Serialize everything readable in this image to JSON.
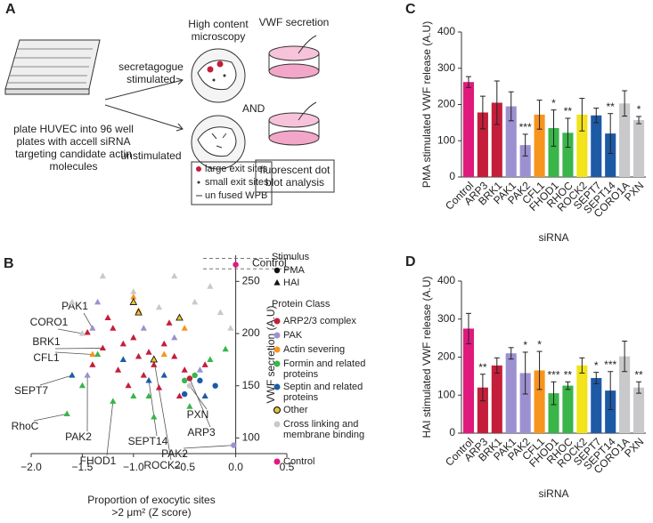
{
  "panel_labels": [
    "A",
    "B",
    "C",
    "D"
  ],
  "panel_a": {
    "plate_text": "plate HUVEC into 96 well plates with accell siRNA targeting candidate actin molecules",
    "stimulated": "secretagogue stimulated",
    "unstimulated": "unstimulated",
    "microscopy": "High content microscopy",
    "secretion": "VWF secretion",
    "and": "AND",
    "dot_blot": "fluorescent dot blot analysis",
    "legend": [
      "large exit sites",
      "small exit sites",
      "un fused WPB"
    ]
  },
  "chart_data": [
    {
      "type": "scatter",
      "x_label": [
        "Proportion of exocytic sites",
        ">2 μm² (Z score)"
      ],
      "y_label": "VWF secretion (A.U)",
      "xlim": [
        -2,
        0.5
      ],
      "xticks": [
        {
          "value": -2,
          "label": "−2.0"
        },
        {
          "value": -1.5,
          "label": "−1.5"
        },
        {
          "value": -1,
          "label": "−1.0"
        },
        {
          "value": -0.5,
          "label": "−0.5"
        },
        {
          "value": 0,
          "label": "0.0"
        },
        0.5
      ],
      "ylim": [
        85,
        275
      ],
      "yticks": [
        100,
        150,
        200,
        250
      ],
      "hlines": [
        262,
        272
      ],
      "band_label": "Control",
      "stimulus_title": "Stimulus",
      "stimulus_legend": [
        "PMA",
        "HAI"
      ],
      "legend_title": "Protein Class",
      "series": [
        {
          "name": "ARP2/3 complex",
          "color": "#c41e3a",
          "x": [
            -0.45,
            -1.45,
            -1.3,
            -1.2,
            -1.1,
            -1.0,
            -0.95,
            -0.85,
            -0.8,
            -0.7,
            -0.6,
            -0.5,
            -1.4,
            -1.15,
            -0.9,
            -0.75,
            -0.55,
            -1.05,
            -0.3,
            -0.65,
            -1.25
          ],
          "values": [
            157,
            201,
            186,
            205,
            190,
            196,
            178,
            182,
            170,
            190,
            178,
            165,
            170,
            165,
            160,
            148,
            140,
            150,
            170,
            210,
            215
          ],
          "stimulus": [
            "PMA",
            "HAI",
            "HAI",
            "HAI",
            "HAI",
            "HAI",
            "HAI",
            "HAI",
            "HAI",
            "HAI",
            "HAI",
            "HAI",
            "HAI",
            "HAI",
            "HAI",
            "HAI",
            "HAI",
            "HAI",
            "HAI",
            "HAI",
            "HAI"
          ]
        },
        {
          "name": "PAK",
          "color": "#9d90d0",
          "x": [
            -1.4,
            -1.45,
            -0.02,
            -0.9,
            -0.6,
            -1.35,
            -0.35
          ],
          "values": [
            205,
            160,
            93,
            205,
            196,
            230,
            165
          ],
          "stimulus": [
            "HAI",
            "HAI",
            "PMA",
            "HAI",
            "HAI",
            "HAI",
            "HAI"
          ]
        },
        {
          "name": "Actin severing",
          "color": "#f7941d",
          "x": [
            -1.4,
            -1.0,
            -0.95,
            -0.7,
            -0.5
          ],
          "values": [
            180,
            235,
            222,
            180,
            205
          ],
          "stimulus": [
            "HAI",
            "HAI",
            "HAI",
            "HAI",
            "HAI"
          ]
        },
        {
          "name": "Formin and related proteins",
          "color": "#39b54a",
          "x": [
            -1.65,
            -1.2,
            -0.85,
            -0.5,
            -0.4,
            -1.35,
            -1.0,
            -0.25,
            -0.1,
            -0.8,
            -1.5,
            -0.45
          ],
          "values": [
            123,
            135,
            140,
            155,
            160,
            180,
            140,
            175,
            185,
            120,
            150,
            130
          ],
          "stimulus": [
            "HAI",
            "HAI",
            "HAI",
            "PMA",
            "PMA",
            "HAI",
            "HAI",
            "HAI",
            "HAI",
            "HAI",
            "HAI",
            "HAI"
          ]
        },
        {
          "name": "Septin and related proteins",
          "color": "#1d5aa6",
          "x": [
            -1.6,
            -0.85,
            -0.35,
            -0.5,
            -0.2,
            -1.1,
            -0.7,
            -0.3
          ],
          "values": [
            160,
            155,
            155,
            142,
            150,
            175,
            160,
            140
          ],
          "stimulus": [
            "HAI",
            "HAI",
            "PMA",
            "PMA",
            "PMA",
            "HAI",
            "HAI",
            "HAI"
          ]
        },
        {
          "name": "Other",
          "color": "#e3c53a",
          "edgecolor": "#000000",
          "x": [
            -0.8,
            -0.95,
            -0.55,
            -1.0
          ],
          "values": [
            175,
            220,
            215,
            230
          ],
          "stimulus": [
            "HAI",
            "HAI",
            "HAI",
            "HAI"
          ]
        },
        {
          "name": "Cross linking and membrane binding",
          "color": "#c9c9cc",
          "x": [
            -1.5,
            -0.45,
            -1.3,
            -1.0,
            -0.75,
            -0.4,
            -0.25,
            -0.6,
            -1.6,
            -0.15,
            -0.05
          ],
          "values": [
            200,
            150,
            255,
            240,
            225,
            230,
            245,
            255,
            230,
            220,
            205
          ],
          "stimulus": [
            "HAI",
            "PMA",
            "HAI",
            "HAI",
            "HAI",
            "HAI",
            "HAI",
            "HAI",
            "HAI",
            "HAI",
            "HAI"
          ]
        },
        {
          "name": "Control",
          "color": "#e0197d",
          "x": [
            0
          ],
          "values": [
            266
          ],
          "stimulus": [
            "PMA"
          ]
        }
      ],
      "annotations": [
        {
          "text": "PAK1",
          "x": -1.4,
          "y": 205
        },
        {
          "text": "CORO1",
          "x": -1.5,
          "y": 200
        },
        {
          "text": "BRK1",
          "x": -1.3,
          "y": 186
        },
        {
          "text": "CFL1",
          "x": -1.4,
          "y": 180
        },
        {
          "text": "SEPT7",
          "x": -1.6,
          "y": 160
        },
        {
          "text": "RhoC",
          "x": -1.65,
          "y": 123
        },
        {
          "text": "PAK2",
          "x": -1.45,
          "y": 160
        },
        {
          "text": "FHOD1",
          "x": -1.2,
          "y": 135
        },
        {
          "text": "ROCK2",
          "x": -0.8,
          "y": 175
        },
        {
          "text": "SEPT14",
          "x": -0.85,
          "y": 155
        },
        {
          "text": "ARP3",
          "x": -0.45,
          "y": 157
        },
        {
          "text": "PXN",
          "x": -0.45,
          "y": 150
        },
        {
          "text": "PAK2",
          "x": -0.02,
          "y": 93
        }
      ]
    },
    {
      "type": "bar",
      "y_label": "PMA stimulated VWF release (A.U)",
      "x_label": "siRNA",
      "ylim": [
        0,
        400
      ],
      "yticks": [
        0,
        100,
        200,
        300,
        400
      ],
      "categories": [
        "Control",
        "ARP3",
        "BRK1",
        "PAK1",
        "PAK2",
        "CFL1",
        "FHOD1",
        "RHOC",
        "ROCK2",
        "SEPT7",
        "SEPT14",
        "CORO1A",
        "PXN"
      ],
      "values": [
        262,
        178,
        205,
        195,
        88,
        172,
        135,
        122,
        172,
        170,
        120,
        203,
        157
      ],
      "errors": [
        15,
        45,
        60,
        40,
        30,
        40,
        50,
        40,
        45,
        20,
        55,
        35,
        10
      ],
      "annotations": [
        null,
        null,
        null,
        null,
        "***",
        null,
        "*",
        "**",
        null,
        null,
        "**",
        null,
        "*"
      ],
      "colors": [
        "#e0197d",
        "#c41e3a",
        "#c41e3a",
        "#9d90d0",
        "#9d90d0",
        "#f7941d",
        "#39b54a",
        "#39b54a",
        "#f2e31b",
        "#1d5aa6",
        "#1d5aa6",
        "#c9c9cc",
        "#c9c9cc"
      ]
    },
    {
      "type": "bar",
      "y_label": "HAI stimulated VWF release (A.U)",
      "x_label": "siRNA",
      "ylim": [
        0,
        400
      ],
      "yticks": [
        0,
        100,
        200,
        300,
        400
      ],
      "categories": [
        "Control",
        "ARP3",
        "BRK1",
        "PAK1",
        "PAK2",
        "CFL1",
        "FHOD1",
        "RHOC",
        "ROCK2",
        "SEPT7",
        "SEPT14",
        "CORO1A",
        "PXN"
      ],
      "values": [
        275,
        120,
        178,
        210,
        158,
        165,
        105,
        125,
        178,
        145,
        112,
        202,
        120
      ],
      "errors": [
        40,
        35,
        20,
        15,
        55,
        50,
        30,
        10,
        20,
        15,
        50,
        40,
        15
      ],
      "annotations": [
        null,
        "**",
        null,
        null,
        "*",
        "*",
        "***",
        "**",
        null,
        "*",
        "***",
        null,
        "**"
      ],
      "colors": [
        "#e0197d",
        "#c41e3a",
        "#c41e3a",
        "#9d90d0",
        "#9d90d0",
        "#f7941d",
        "#39b54a",
        "#39b54a",
        "#f2e31b",
        "#1d5aa6",
        "#1d5aa6",
        "#c9c9cc",
        "#c9c9cc"
      ]
    }
  ]
}
